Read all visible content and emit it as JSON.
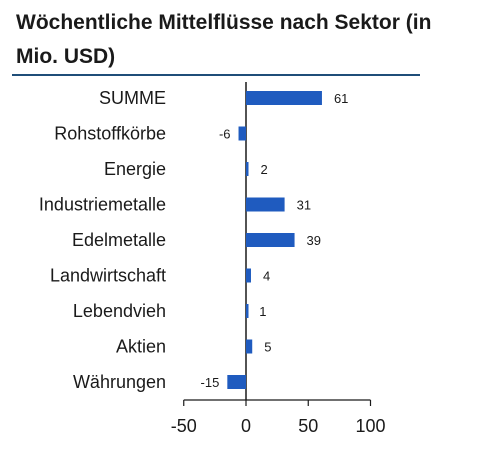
{
  "chart_data": {
    "type": "bar",
    "orientation": "horizontal",
    "title": "Wöchentliche Mittelflüsse nach Sektor (in Mio. USD)",
    "categories": [
      "SUMME",
      "Rohstoffkörbe",
      "Energie",
      "Industriemetalle",
      "Edelmetalle",
      "Landwirtschaft",
      "Lebendvieh",
      "Aktien",
      "Währungen"
    ],
    "values": [
      61,
      -6,
      2,
      31,
      39,
      4,
      1,
      5,
      -15
    ],
    "xlim": [
      -50,
      100
    ],
    "xticks": [
      -50,
      0,
      50,
      100
    ],
    "bar_color": "#1f5bbf",
    "grid": false,
    "legend": "none"
  }
}
